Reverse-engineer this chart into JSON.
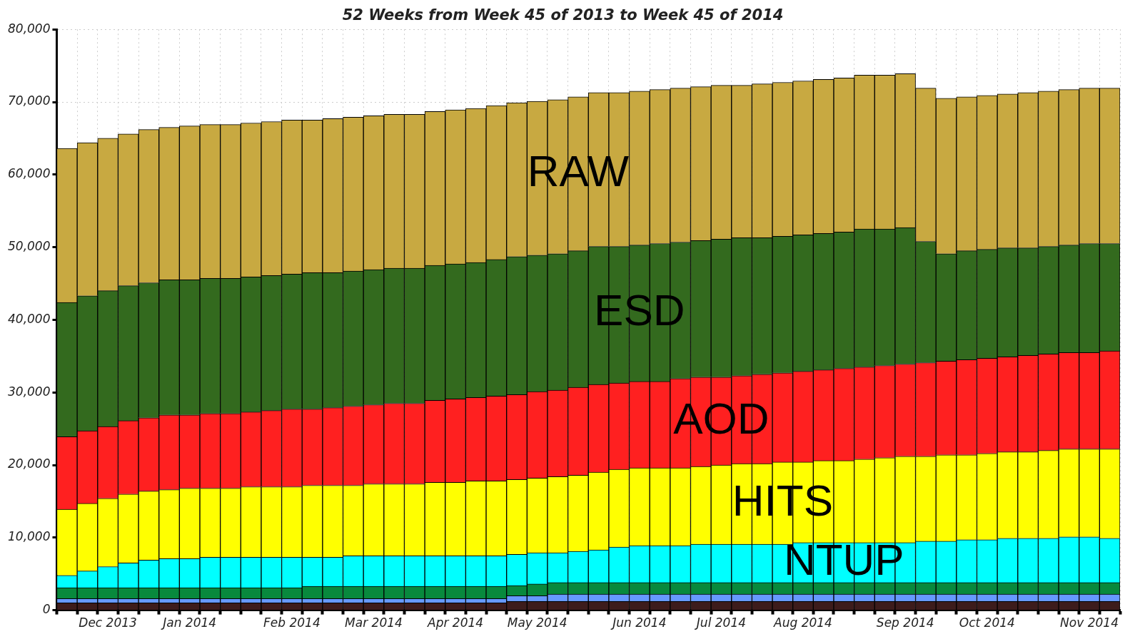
{
  "chart_data": {
    "type": "bar",
    "stacked": true,
    "title": "52 Weeks from Week 45 of 2013 to Week 45 of 2014",
    "categories": [
      null,
      null,
      "Dec 2013",
      null,
      null,
      null,
      "Jan 2014",
      null,
      null,
      null,
      null,
      "Feb 2014",
      null,
      null,
      null,
      "Mar 2014",
      null,
      null,
      null,
      "Apr 2014",
      null,
      null,
      null,
      "May 2014",
      null,
      null,
      null,
      null,
      "Jun 2014",
      null,
      null,
      null,
      "Jul 2014",
      null,
      null,
      null,
      "Aug 2014",
      null,
      null,
      null,
      null,
      "Sep 2014",
      null,
      null,
      null,
      "Oct 2014",
      null,
      null,
      null,
      null,
      "Nov 2014",
      null
    ],
    "ylim": [
      0,
      80000
    ],
    "yticks": [
      {
        "value": 0,
        "label": "0"
      },
      {
        "value": 10000,
        "label": "10,000"
      },
      {
        "value": 20000,
        "label": "20,000"
      },
      {
        "value": 30000,
        "label": "30,000"
      },
      {
        "value": 40000,
        "label": "40,000"
      },
      {
        "value": 50000,
        "label": "50,000"
      },
      {
        "value": 60000,
        "label": "60,000"
      },
      {
        "value": 70000,
        "label": "70,000"
      },
      {
        "value": 80000,
        "label": "80,000"
      }
    ],
    "grid": true,
    "legend": false,
    "series": [
      {
        "color": "#3d1c1c",
        "values": [
          1000,
          1000,
          1000,
          1000,
          1000,
          1000,
          1000,
          1000,
          1000,
          1000,
          1000,
          1000,
          1000,
          1000,
          1000,
          1000,
          1000,
          1000,
          1000,
          1000,
          1000,
          1000,
          1200,
          1200,
          1200,
          1200,
          1200,
          1200,
          1200,
          1200,
          1200,
          1200,
          1200,
          1200,
          1200,
          1200,
          1200,
          1200,
          1200,
          1200,
          1200,
          1200,
          1200,
          1200,
          1200,
          1200,
          1200,
          1200,
          1200,
          1200,
          1200,
          1200
        ]
      },
      {
        "color": "#6699ff",
        "values": [
          600,
          600,
          600,
          600,
          600,
          600,
          600,
          600,
          600,
          600,
          600,
          600,
          600,
          600,
          600,
          600,
          600,
          600,
          600,
          600,
          600,
          600,
          800,
          800,
          1000,
          1000,
          1000,
          1000,
          1000,
          1000,
          1000,
          1000,
          1000,
          1000,
          1000,
          1000,
          1000,
          1000,
          1000,
          1000,
          1000,
          1000,
          1000,
          1000,
          1000,
          1000,
          1000,
          1000,
          1000,
          1000,
          1000,
          1000
        ]
      },
      {
        "color": "#08893d",
        "values": [
          1500,
          1500,
          1500,
          1500,
          1500,
          1500,
          1500,
          1500,
          1500,
          1500,
          1500,
          1500,
          1700,
          1700,
          1700,
          1700,
          1700,
          1700,
          1700,
          1700,
          1700,
          1700,
          1400,
          1600,
          1600,
          1600,
          1600,
          1600,
          1600,
          1600,
          1600,
          1600,
          1600,
          1600,
          1600,
          1600,
          1600,
          1600,
          1600,
          1600,
          1600,
          1600,
          1600,
          1600,
          1600,
          1600,
          1600,
          1600,
          1600,
          1600,
          1600,
          1600
        ]
      },
      {
        "name": "NTUP",
        "color": "#00ffff",
        "values": [
          1700,
          2300,
          2900,
          3400,
          3800,
          4000,
          4000,
          4200,
          4200,
          4200,
          4200,
          4200,
          4000,
          4000,
          4200,
          4200,
          4200,
          4200,
          4200,
          4200,
          4200,
          4200,
          4300,
          4300,
          4100,
          4300,
          4500,
          4900,
          5100,
          5100,
          5100,
          5300,
          5300,
          5300,
          5300,
          5300,
          5500,
          5500,
          5500,
          5500,
          5500,
          5500,
          5700,
          5700,
          5900,
          5900,
          6100,
          6100,
          6100,
          6300,
          6300,
          6100
        ]
      },
      {
        "name": "HITS",
        "color": "#ffff00",
        "values": [
          9100,
          9300,
          9400,
          9500,
          9500,
          9500,
          9700,
          9500,
          9500,
          9700,
          9700,
          9700,
          9900,
          9900,
          9700,
          9900,
          9900,
          9900,
          10100,
          10100,
          10300,
          10300,
          10300,
          10300,
          10500,
          10500,
          10700,
          10700,
          10700,
          10700,
          10700,
          10700,
          10900,
          11100,
          11100,
          11300,
          11100,
          11300,
          11300,
          11500,
          11700,
          11900,
          11700,
          11900,
          11700,
          11900,
          11900,
          11900,
          12100,
          12100,
          12100,
          12300
        ]
      },
      {
        "name": "AOD",
        "color": "#ff2020",
        "values": [
          10000,
          10000,
          9900,
          10100,
          10100,
          10300,
          10100,
          10300,
          10300,
          10300,
          10500,
          10700,
          10500,
          10700,
          10900,
          10900,
          11100,
          11100,
          11300,
          11500,
          11500,
          11700,
          11700,
          11900,
          11900,
          12100,
          12100,
          11900,
          11900,
          11900,
          12300,
          12300,
          12100,
          12100,
          12300,
          12300,
          12500,
          12500,
          12700,
          12700,
          12700,
          12700,
          12900,
          12900,
          13100,
          13100,
          13100,
          13300,
          13300,
          13300,
          13300,
          13500
        ]
      },
      {
        "name": "ESD",
        "color": "#336a1e",
        "values": [
          18500,
          18600,
          18700,
          18600,
          18600,
          18600,
          18600,
          18600,
          18600,
          18600,
          18600,
          18600,
          18800,
          18600,
          18600,
          18600,
          18600,
          18600,
          18600,
          18600,
          18600,
          18800,
          19000,
          18800,
          18800,
          18800,
          19000,
          18800,
          18800,
          19000,
          18800,
          18800,
          19000,
          19000,
          18800,
          18800,
          18800,
          18800,
          18800,
          19000,
          18800,
          18800,
          16700,
          14800,
          15000,
          15000,
          15000,
          14800,
          14800,
          14800,
          15000,
          14800
        ]
      },
      {
        "name": "RAW",
        "color": "#c8a941",
        "values": [
          21200,
          21100,
          21000,
          20900,
          21100,
          21000,
          21200,
          21200,
          21200,
          21200,
          21200,
          21200,
          21000,
          21200,
          21200,
          21200,
          21200,
          21200,
          21200,
          21200,
          21200,
          21200,
          21200,
          21200,
          21200,
          21200,
          21200,
          21200,
          21200,
          21200,
          21200,
          21200,
          21200,
          21000,
          21200,
          21200,
          21200,
          21200,
          21200,
          21200,
          21200,
          21200,
          21100,
          21400,
          21200,
          21200,
          21200,
          21400,
          21400,
          21400,
          21400,
          21400
        ]
      }
    ]
  }
}
